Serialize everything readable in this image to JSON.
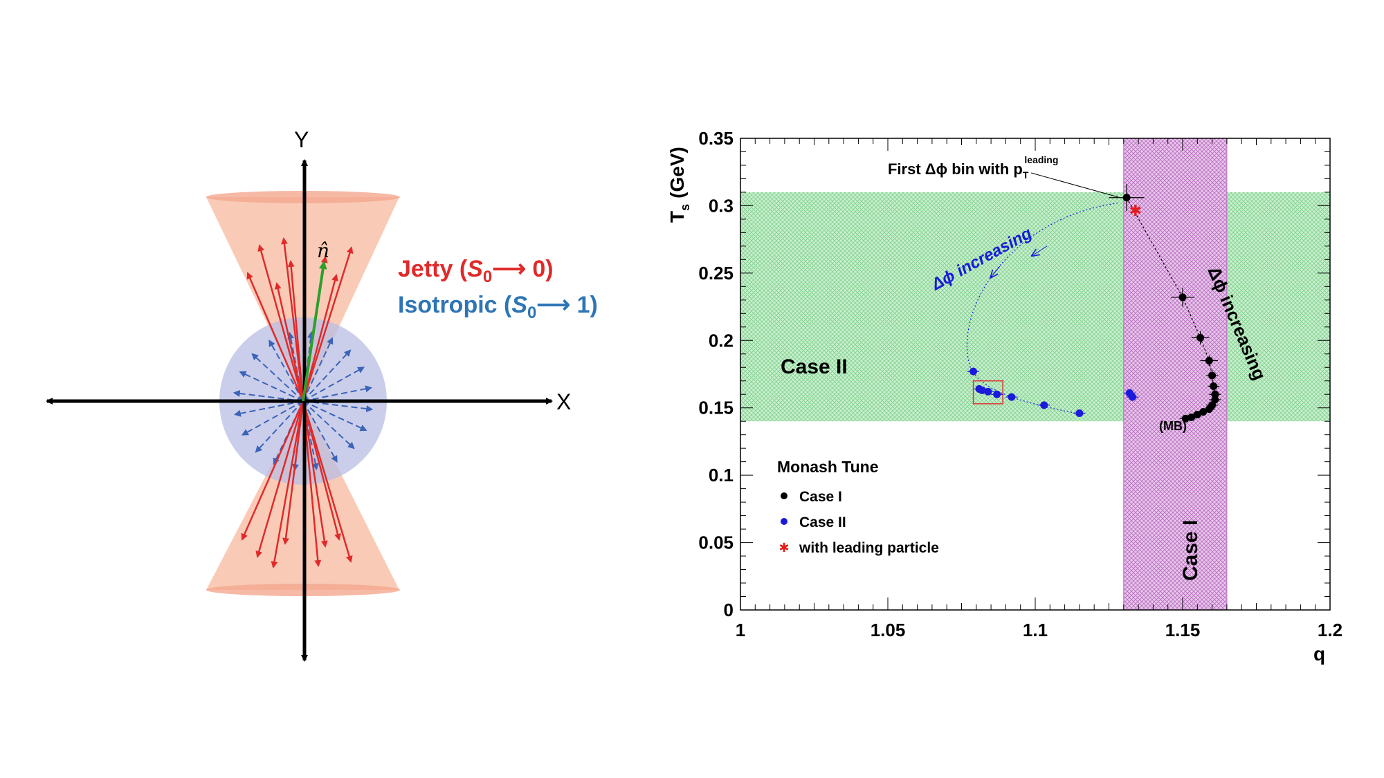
{
  "left_diagram": {
    "y_axis_label": "Y",
    "x_axis_label": "X",
    "n_hat_label": "n̂",
    "legend_jetty": {
      "text": "Jetty (",
      "symbol": "S",
      "subscript": "0",
      "rest": "⟶ 0)",
      "color": "#e02a2a"
    },
    "legend_isotropic": {
      "text": "Isotropic (",
      "symbol": "S",
      "subscript": "0",
      "rest": "⟶ 1)",
      "color": "#2e75b6"
    },
    "colors": {
      "cone_fill": "#f8bfa6",
      "sphere_fill": "#b8bde3",
      "jet_arrow": "#e02a2a",
      "iso_arrow": "#3b63b8",
      "n_hat_arrow": "#2ca02c",
      "axis": "#000000"
    }
  },
  "chart_data": {
    "type": "scatter",
    "xlabel": "q",
    "ylabel": "T",
    "ylabel_sub": "s",
    "ylabel_unit": "(GeV)",
    "xlim": [
      1.0,
      1.2
    ],
    "ylim": [
      0.0,
      0.35
    ],
    "x_ticks": [
      "1",
      "1.05",
      "1.1",
      "1.15",
      "1.2"
    ],
    "x_tick_values": [
      1.0,
      1.05,
      1.1,
      1.15,
      1.2
    ],
    "y_ticks": [
      "0",
      "0.05",
      "0.1",
      "0.15",
      "0.2",
      "0.25",
      "0.3",
      "0.35"
    ],
    "y_tick_values": [
      0.0,
      0.05,
      0.1,
      0.15,
      0.2,
      0.25,
      0.3,
      0.35
    ],
    "bands": [
      {
        "name": "Case II",
        "axis": "y",
        "range": [
          0.14,
          0.31
        ],
        "color": "#a9e2b1"
      },
      {
        "name": "Case I",
        "axis": "x",
        "range": [
          1.13,
          1.165
        ],
        "color": "#d8a6dc"
      }
    ],
    "band_labels": {
      "case2": "Case II",
      "case1": "Case I"
    },
    "legend": {
      "title": "Monash Tune",
      "entries": [
        {
          "label": "Case I",
          "marker": "circle",
          "color": "#000000"
        },
        {
          "label": "Case II",
          "marker": "circle",
          "color": "#1a1adb"
        },
        {
          "label": "with leading particle",
          "marker": "star",
          "color": "#e21c1c"
        }
      ]
    },
    "series": [
      {
        "name": "Case I",
        "color": "#000000",
        "points": [
          {
            "x": 1.131,
            "y": 0.306,
            "xerr": 0.006,
            "yerr": 0.01
          },
          {
            "x": 1.15,
            "y": 0.232,
            "xerr": 0.004,
            "yerr": 0.007
          },
          {
            "x": 1.156,
            "y": 0.202,
            "xerr": 0.003,
            "yerr": 0.005
          },
          {
            "x": 1.159,
            "y": 0.185,
            "xerr": 0.003,
            "yerr": 0.004
          },
          {
            "x": 1.16,
            "y": 0.174,
            "xerr": 0.002,
            "yerr": 0.004
          },
          {
            "x": 1.1605,
            "y": 0.166,
            "xerr": 0.002,
            "yerr": 0.003
          },
          {
            "x": 1.161,
            "y": 0.16,
            "xerr": 0.002,
            "yerr": 0.003
          },
          {
            "x": 1.161,
            "y": 0.156,
            "xerr": 0.002,
            "yerr": 0.002
          },
          {
            "x": 1.16,
            "y": 0.152,
            "xerr": 0.002,
            "yerr": 0.002
          },
          {
            "x": 1.159,
            "y": 0.149,
            "xerr": 0.002,
            "yerr": 0.002
          },
          {
            "x": 1.157,
            "y": 0.147,
            "xerr": 0.002,
            "yerr": 0.002
          },
          {
            "x": 1.155,
            "y": 0.145,
            "xerr": 0.002,
            "yerr": 0.002
          },
          {
            "x": 1.153,
            "y": 0.143,
            "xerr": 0.002,
            "yerr": 0.002
          },
          {
            "x": 1.151,
            "y": 0.142,
            "xerr": 0.002,
            "yerr": 0.002
          }
        ]
      },
      {
        "name": "Case II",
        "color": "#1a1adb",
        "points": [
          {
            "x": 1.115,
            "y": 0.146,
            "xerr": 0.002
          },
          {
            "x": 1.103,
            "y": 0.152,
            "xerr": 0.002
          },
          {
            "x": 1.092,
            "y": 0.158,
            "xerr": 0.002
          },
          {
            "x": 1.087,
            "y": 0.16,
            "xerr": 0.002
          },
          {
            "x": 1.084,
            "y": 0.162,
            "xerr": 0.002
          },
          {
            "x": 1.082,
            "y": 0.163,
            "xerr": 0.002
          },
          {
            "x": 1.081,
            "y": 0.164,
            "xerr": 0.002
          },
          {
            "x": 1.079,
            "y": 0.177,
            "xerr": 0.002
          },
          {
            "x": 1.132,
            "y": 0.161,
            "xerr": 0.002
          },
          {
            "x": 1.133,
            "y": 0.158,
            "xerr": 0.002
          }
        ]
      },
      {
        "name": "with leading particle",
        "color": "#e21c1c",
        "points": [
          {
            "x": 1.134,
            "y": 0.296
          }
        ]
      }
    ],
    "annotations": {
      "first_bin": {
        "text": "First  Δϕ bin with p",
        "sub": "T",
        "sup": "leading"
      },
      "case2_arrow": "Δϕ increasing",
      "case1_arrow": "Δϕ increasing",
      "mb": "(MB)"
    }
  }
}
